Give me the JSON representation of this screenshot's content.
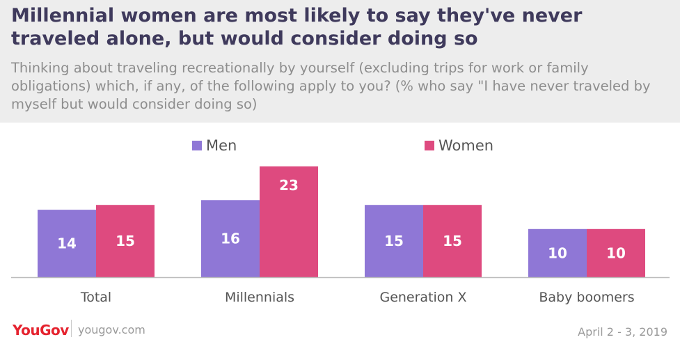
{
  "header": {
    "title": "Millennial women are most likely to say they've never traveled alone, but would consider doing so",
    "subtitle": "Thinking about traveling recreationally by yourself (excluding trips for work or family obligations) which, if any, of the following apply to you? (% who say \"I have never traveled by myself but would consider doing so)"
  },
  "footer": {
    "brand": "YouGov",
    "site": "yougov.com",
    "date": "April 2 - 3, 2019"
  },
  "colors": {
    "men": "#8f77d6",
    "women": "#de4a7f",
    "axis": "#bcbcbc"
  },
  "chart_data": {
    "type": "bar",
    "title": "Millennial women are most likely to say they've never traveled alone, but would consider doing so",
    "xlabel": "",
    "ylabel": "",
    "ylim": [
      0,
      25
    ],
    "legend_position": "top",
    "categories": [
      "Total",
      "Millennials",
      "Generation X",
      "Baby boomers"
    ],
    "series": [
      {
        "name": "Men",
        "values": [
          14,
          16,
          15,
          10
        ]
      },
      {
        "name": "Women",
        "values": [
          15,
          23,
          15,
          10
        ]
      }
    ]
  }
}
